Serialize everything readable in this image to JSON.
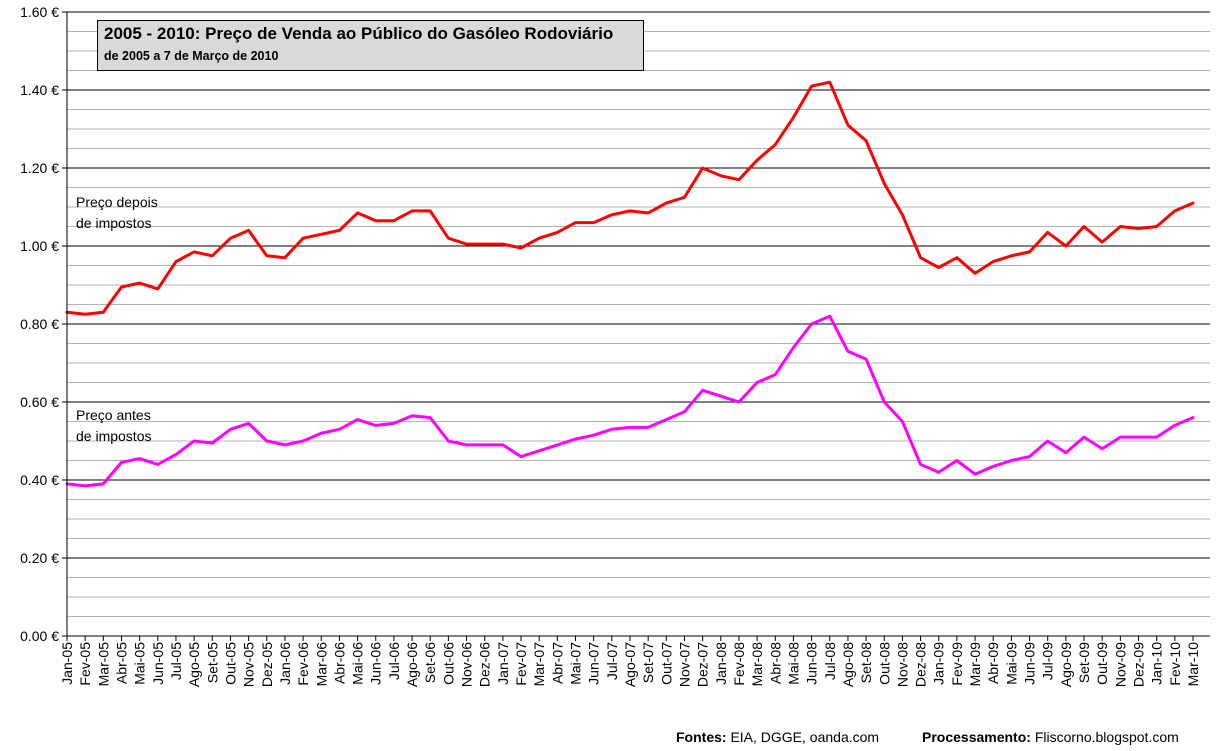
{
  "chart_data": {
    "type": "line",
    "title": "2005 - 2010: Preço de Venda ao Público do Gasóleo Rodoviário",
    "subtitle": "de 2005 a 7 de Março de 2010",
    "ylim": [
      0,
      1.6
    ],
    "yticks": [
      "0.00 €",
      "0.20 €",
      "0.40 €",
      "0.60 €",
      "0.80 €",
      "1.00 €",
      "1.20 €",
      "1.40 €",
      "1.60 €"
    ],
    "grid": true,
    "x": [
      "Jan-05",
      "Fev-05",
      "Mar-05",
      "Abr-05",
      "Mai-05",
      "Jun-05",
      "Jul-05",
      "Ago-05",
      "Set-05",
      "Out-05",
      "Nov-05",
      "Dez-05",
      "Jan-06",
      "Fev-06",
      "Mar-06",
      "Abr-06",
      "Mai-06",
      "Jun-06",
      "Jul-06",
      "Ago-06",
      "Set-06",
      "Out-06",
      "Nov-06",
      "Dez-06",
      "Jan-07",
      "Fev-07",
      "Mar-07",
      "Abr-07",
      "Mai-07",
      "Jun-07",
      "Jul-07",
      "Ago-07",
      "Set-07",
      "Out-07",
      "Nov-07",
      "Dez-07",
      "Jan-08",
      "Fev-08",
      "Mar-08",
      "Abr-08",
      "Mai-08",
      "Jun-08",
      "Jul-08",
      "Ago-08",
      "Set-08",
      "Out-08",
      "Nov-08",
      "Dez-08",
      "Jan-09",
      "Fev-09",
      "Mar-09",
      "Abr-09",
      "Mai-09",
      "Jun-09",
      "Jul-09",
      "Ago-09",
      "Set-09",
      "Out-09",
      "Nov-09",
      "Dez-09",
      "Jan-10",
      "Fev-10",
      "Mar-10"
    ],
    "series": [
      {
        "name": "Preço depois de impostos",
        "label_lines": [
          "Preço depois",
          "de impostos"
        ],
        "color": "#ff0000",
        "values": [
          0.83,
          0.825,
          0.83,
          0.895,
          0.905,
          0.89,
          0.96,
          0.985,
          0.975,
          1.02,
          1.04,
          0.975,
          0.97,
          1.02,
          1.03,
          1.04,
          1.085,
          1.065,
          1.065,
          1.09,
          1.09,
          1.02,
          1.005,
          1.005,
          1.005,
          0.995,
          1.02,
          1.035,
          1.06,
          1.06,
          1.08,
          1.09,
          1.085,
          1.11,
          1.125,
          1.2,
          1.18,
          1.17,
          1.22,
          1.26,
          1.33,
          1.41,
          1.42,
          1.31,
          1.27,
          1.16,
          1.08,
          0.97,
          0.945,
          0.97,
          0.93,
          0.96,
          0.975,
          0.985,
          1.035,
          1.0,
          1.05,
          1.01,
          1.05,
          1.045,
          1.05,
          1.09,
          1.11
        ]
      },
      {
        "name": "Preço antes de impostos",
        "label_lines": [
          "Preço antes",
          "de impostos"
        ],
        "color": "#ff00ff",
        "values": [
          0.39,
          0.385,
          0.39,
          0.445,
          0.455,
          0.44,
          0.465,
          0.5,
          0.495,
          0.53,
          0.545,
          0.5,
          0.49,
          0.5,
          0.52,
          0.53,
          0.555,
          0.54,
          0.545,
          0.565,
          0.56,
          0.5,
          0.49,
          0.49,
          0.49,
          0.46,
          0.475,
          0.49,
          0.505,
          0.515,
          0.53,
          0.535,
          0.535,
          0.555,
          0.575,
          0.63,
          0.615,
          0.6,
          0.65,
          0.67,
          0.74,
          0.8,
          0.82,
          0.73,
          0.71,
          0.6,
          0.55,
          0.44,
          0.42,
          0.45,
          0.415,
          0.435,
          0.45,
          0.46,
          0.5,
          0.47,
          0.51,
          0.48,
          0.51,
          0.51,
          0.51,
          0.54,
          0.56
        ]
      }
    ],
    "sources": {
      "label": "Fontes:",
      "text": " EIA, DGGE, oanda.com"
    },
    "processing": {
      "label": "Processamento:",
      "text": " Fliscorno.blogspot.com"
    }
  }
}
